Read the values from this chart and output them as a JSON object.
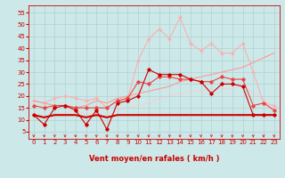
{
  "background_color": "#cce8e8",
  "grid_color": "#aacccc",
  "xlabel": "Vent moyen/en rafales ( km/h )",
  "ylabel_ticks": [
    5,
    10,
    15,
    20,
    25,
    30,
    35,
    40,
    45,
    50,
    55
  ],
  "x_values": [
    0,
    1,
    2,
    3,
    4,
    5,
    6,
    7,
    8,
    9,
    10,
    11,
    12,
    13,
    14,
    15,
    16,
    17,
    18,
    19,
    20,
    21,
    22,
    23
  ],
  "series": [
    {
      "y": [
        12,
        8,
        15,
        16,
        14,
        8,
        14,
        6,
        17,
        18,
        20,
        31,
        29,
        29,
        29,
        27,
        26,
        21,
        25,
        25,
        24,
        12,
        12,
        12
      ],
      "color": "#cc0000",
      "marker": "D",
      "markersize": 1.8,
      "linewidth": 0.8,
      "zorder": 5
    },
    {
      "y": [
        12,
        11,
        12,
        12,
        12,
        11,
        12,
        11,
        12,
        12,
        12,
        12,
        12,
        12,
        12,
        12,
        12,
        12,
        12,
        12,
        12,
        12,
        12,
        12
      ],
      "color": "#cc0000",
      "marker": null,
      "markersize": 0,
      "linewidth": 1.5,
      "zorder": 4
    },
    {
      "y": [
        16,
        15,
        16,
        16,
        15,
        15,
        15,
        15,
        18,
        19,
        26,
        25,
        28,
        28,
        27,
        27,
        26,
        26,
        28,
        27,
        27,
        16,
        17,
        14
      ],
      "color": "#ee4444",
      "marker": "D",
      "markersize": 1.8,
      "linewidth": 0.8,
      "zorder": 3
    },
    {
      "y": [
        18,
        17,
        19,
        20,
        19,
        18,
        19,
        15,
        18,
        19,
        35,
        44,
        48,
        44,
        53,
        42,
        39,
        42,
        38,
        38,
        42,
        30,
        17,
        16
      ],
      "color": "#ffaaaa",
      "marker": "+",
      "markersize": 2.5,
      "linewidth": 0.7,
      "zorder": 2
    },
    {
      "y": [
        18,
        17,
        16,
        16,
        15,
        16,
        18,
        17,
        19,
        20,
        21,
        22,
        23,
        24,
        26,
        27,
        28,
        29,
        30,
        31,
        32,
        34,
        36,
        38
      ],
      "color": "#ff9999",
      "marker": null,
      "markersize": 0,
      "linewidth": 0.8,
      "zorder": 2
    },
    {
      "y": [
        12,
        11,
        12,
        13,
        14,
        12,
        13,
        11,
        14,
        15,
        16,
        17,
        19,
        20,
        21,
        22,
        22,
        23,
        23,
        23,
        24,
        21,
        19,
        15
      ],
      "color": "#ffcccc",
      "marker": null,
      "markersize": 0,
      "linewidth": 0.7,
      "zorder": 1
    }
  ],
  "arrow_color": "#cc3333",
  "axis_fontsize": 5.5,
  "tick_fontsize": 5.0,
  "xlabel_fontsize": 6.0
}
